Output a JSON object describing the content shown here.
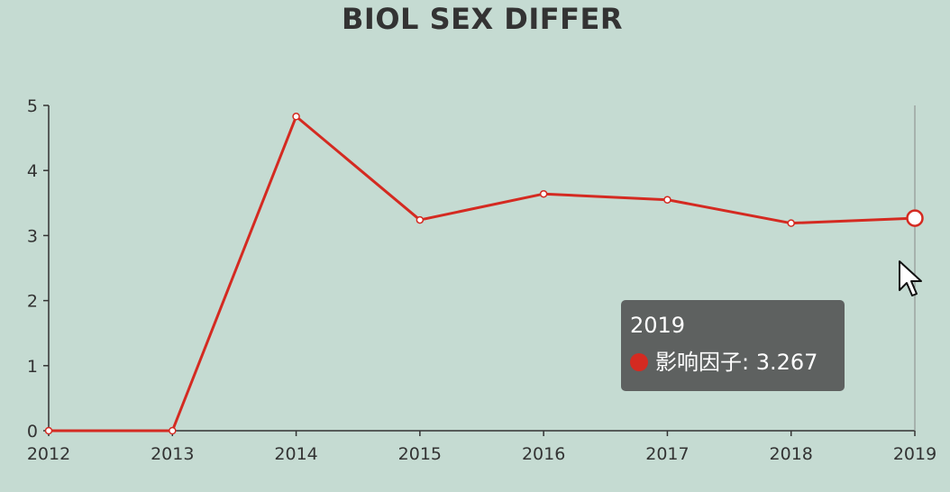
{
  "chart_data": {
    "type": "line",
    "title": "BIOL SEX DIFFER",
    "categories": [
      "2012",
      "2013",
      "2014",
      "2015",
      "2016",
      "2017",
      "2018",
      "2019"
    ],
    "series": [
      {
        "name": "影响因子",
        "values": [
          0,
          0,
          4.83,
          3.24,
          3.64,
          3.55,
          3.19,
          3.267
        ],
        "color": "#d42a21"
      }
    ],
    "ylim": [
      0,
      5
    ],
    "yticks": [
      "0",
      "1",
      "2",
      "3",
      "4",
      "5"
    ],
    "grid": false,
    "highlighted_category": "2019"
  },
  "tooltip": {
    "title": "2019",
    "label": "影响因子: 3.267"
  },
  "colors": {
    "background": "#c5dbd2",
    "line": "#d42a21",
    "axis": "#333333",
    "tooltip_bg": "#505050"
  }
}
